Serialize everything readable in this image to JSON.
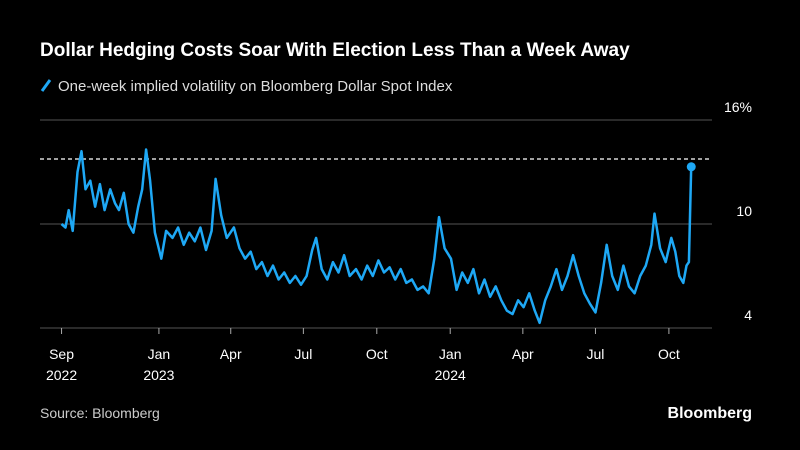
{
  "chart_data": {
    "type": "line",
    "title": "Dollar Hedging Costs Soar With Election Less Than a Week Away",
    "source": "Source: Bloomberg",
    "brand": "Bloomberg",
    "reference_line": 13.75,
    "ylim": [
      4,
      16
    ],
    "yticks": [
      4,
      10,
      {
        "value": 16,
        "label": "16%"
      }
    ],
    "xlim": [
      "2022-08-05",
      "2024-11-24"
    ],
    "xticks": [
      {
        "value": "2022-09-01",
        "label": "Sep",
        "year": "2022"
      },
      {
        "value": "2023-01-01",
        "label": "Jan",
        "year": "2023"
      },
      {
        "value": "2023-04-01",
        "label": "Apr"
      },
      {
        "value": "2023-07-01",
        "label": "Jul"
      },
      {
        "value": "2023-10-01",
        "label": "Oct"
      },
      {
        "value": "2024-01-01",
        "label": "Jan",
        "year": "2024"
      },
      {
        "value": "2024-04-01",
        "label": "Apr"
      },
      {
        "value": "2024-07-01",
        "label": "Jul"
      },
      {
        "value": "2024-10-01",
        "label": "Oct"
      }
    ],
    "x": [
      "2022-09-01",
      "2022-09-06",
      "2022-09-10",
      "2022-09-15",
      "2022-09-21",
      "2022-09-26",
      "2022-10-01",
      "2022-10-07",
      "2022-10-13",
      "2022-10-19",
      "2022-10-25",
      "2022-11-01",
      "2022-11-07",
      "2022-11-12",
      "2022-11-18",
      "2022-11-24",
      "2022-11-30",
      "2022-12-06",
      "2022-12-11",
      "2022-12-16",
      "2022-12-21",
      "2022-12-27",
      "2023-01-04",
      "2023-01-10",
      "2023-01-18",
      "2023-01-25",
      "2023-02-01",
      "2023-02-08",
      "2023-02-15",
      "2023-02-22",
      "2023-03-01",
      "2023-03-08",
      "2023-03-13",
      "2023-03-20",
      "2023-03-27",
      "2023-04-05",
      "2023-04-12",
      "2023-04-19",
      "2023-04-26",
      "2023-05-03",
      "2023-05-10",
      "2023-05-17",
      "2023-05-24",
      "2023-05-31",
      "2023-06-07",
      "2023-06-14",
      "2023-06-21",
      "2023-06-28",
      "2023-07-05",
      "2023-07-12",
      "2023-07-17",
      "2023-07-24",
      "2023-07-31",
      "2023-08-07",
      "2023-08-14",
      "2023-08-21",
      "2023-08-28",
      "2023-09-05",
      "2023-09-12",
      "2023-09-19",
      "2023-09-26",
      "2023-10-03",
      "2023-10-10",
      "2023-10-17",
      "2023-10-24",
      "2023-10-31",
      "2023-11-07",
      "2023-11-14",
      "2023-11-21",
      "2023-11-28",
      "2023-12-05",
      "2023-12-12",
      "2023-12-18",
      "2023-12-25",
      "2024-01-02",
      "2024-01-09",
      "2024-01-16",
      "2024-01-23",
      "2024-01-30",
      "2024-02-06",
      "2024-02-13",
      "2024-02-20",
      "2024-02-27",
      "2024-03-05",
      "2024-03-12",
      "2024-03-19",
      "2024-03-26",
      "2024-04-02",
      "2024-04-09",
      "2024-04-16",
      "2024-04-22",
      "2024-04-29",
      "2024-05-06",
      "2024-05-13",
      "2024-05-20",
      "2024-05-27",
      "2024-06-03",
      "2024-06-10",
      "2024-06-17",
      "2024-06-24",
      "2024-07-01",
      "2024-07-08",
      "2024-07-15",
      "2024-07-22",
      "2024-07-29",
      "2024-08-05",
      "2024-08-12",
      "2024-08-19",
      "2024-08-26",
      "2024-09-02",
      "2024-09-09",
      "2024-09-13",
      "2024-09-20",
      "2024-09-27",
      "2024-10-04",
      "2024-10-09",
      "2024-10-14",
      "2024-10-19",
      "2024-10-23",
      "2024-10-26",
      "2024-10-29"
    ],
    "series": [
      {
        "name": "One-week implied volatility on Bloomberg Dollar Spot Index",
        "color": "#1ea8f5",
        "values": [
          10,
          9.8,
          10.8,
          9.6,
          13.0,
          14.2,
          12.0,
          12.5,
          11.0,
          12.3,
          10.8,
          12.0,
          11.2,
          10.8,
          11.8,
          10.0,
          9.5,
          11.0,
          12.0,
          14.3,
          12.5,
          9.5,
          8.0,
          9.6,
          9.2,
          9.8,
          8.8,
          9.5,
          9.0,
          9.8,
          8.5,
          9.6,
          12.6,
          10.5,
          9.2,
          9.8,
          8.6,
          8.0,
          8.4,
          7.4,
          7.8,
          7.0,
          7.6,
          6.8,
          7.2,
          6.6,
          7.0,
          6.5,
          7.0,
          8.5,
          9.2,
          7.4,
          6.8,
          7.8,
          7.2,
          8.2,
          7.0,
          7.4,
          6.8,
          7.6,
          7.0,
          7.9,
          7.2,
          7.5,
          6.8,
          7.4,
          6.6,
          6.8,
          6.2,
          6.4,
          6.0,
          8.0,
          10.4,
          8.6,
          8.0,
          6.2,
          7.2,
          6.6,
          7.4,
          6.0,
          6.8,
          5.8,
          6.4,
          5.6,
          5.0,
          4.8,
          5.6,
          5.2,
          6.0,
          5.0,
          4.3,
          5.6,
          6.4,
          7.4,
          6.2,
          7.0,
          8.2,
          7.0,
          6.0,
          5.4,
          4.9,
          6.6,
          8.8,
          7.0,
          6.2,
          7.6,
          6.4,
          6.0,
          7.0,
          7.6,
          8.8,
          10.6,
          8.6,
          7.8,
          9.2,
          8.4,
          7.0,
          6.6,
          7.6,
          7.8,
          13.3
        ]
      }
    ]
  }
}
